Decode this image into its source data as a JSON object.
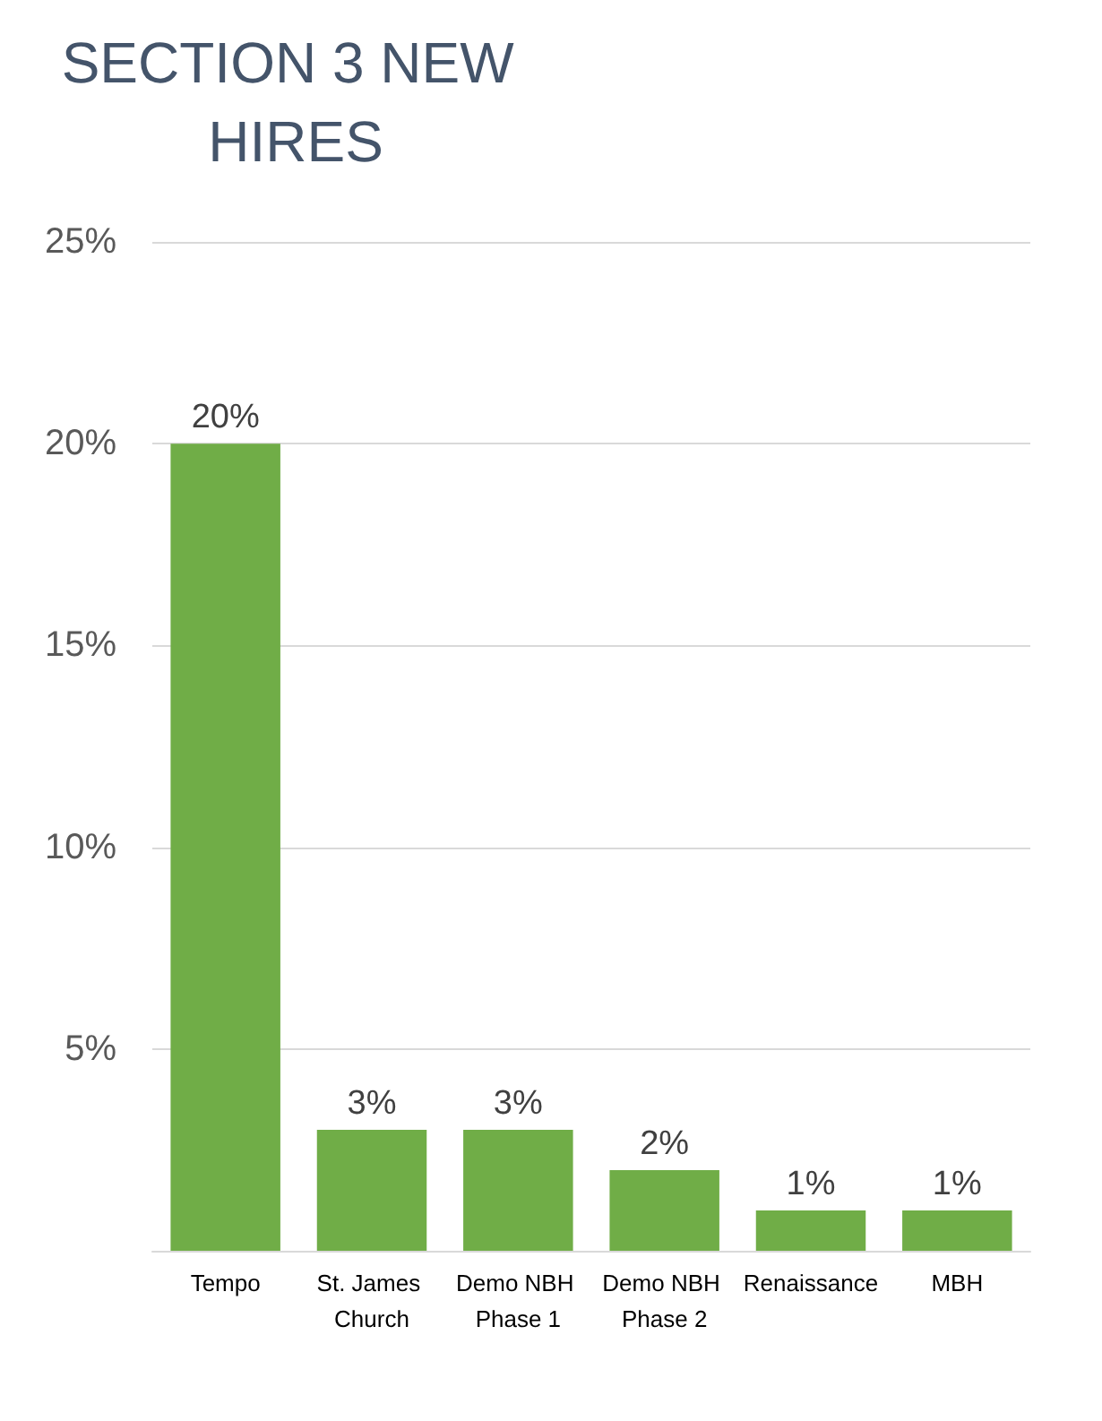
{
  "chart_data": {
    "type": "bar",
    "title": "SECTION 3 NEW HIRES",
    "categories": [
      "Tempo",
      "St. James Church",
      "Demo NBH Phase 1",
      "Demo NBH Phase 2",
      "Renaissance",
      "MBH"
    ],
    "values": [
      20,
      3,
      3,
      2,
      1,
      1
    ],
    "value_labels": [
      "20%",
      "3%",
      "3%",
      "2%",
      "1%",
      "1%"
    ],
    "color": "#70ad47",
    "ylim": [
      0,
      25
    ],
    "yticks": [
      {
        "value": 5,
        "label": "5%"
      },
      {
        "value": 10,
        "label": "10%"
      },
      {
        "value": 15,
        "label": "15%"
      },
      {
        "value": 20,
        "label": "20%"
      },
      {
        "value": 25,
        "label": "25%"
      }
    ],
    "grid": "y"
  }
}
